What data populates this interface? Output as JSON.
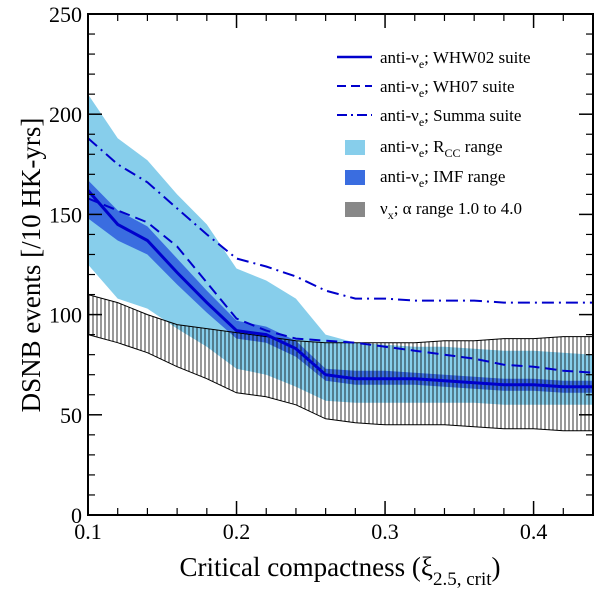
{
  "chart_data": {
    "type": "line",
    "xlabel": "Critical compactness (ξ",
    "xlabel_sub": "2.5, crit",
    "xlabel_close": ")",
    "ylabel": "DSNB events [/10 HK-yrs]",
    "xlim": [
      0.1,
      0.44
    ],
    "ylim": [
      0,
      250
    ],
    "xticks": [
      0.1,
      0.2,
      0.3,
      0.4
    ],
    "xtick_labels": [
      "0.1",
      "0.2",
      "0.3",
      "0.4"
    ],
    "yticks": [
      0,
      50,
      100,
      150,
      200,
      250
    ],
    "ytick_labels": [
      "0",
      "50",
      "100",
      "150",
      "200",
      "250"
    ],
    "x": [
      0.1,
      0.12,
      0.14,
      0.16,
      0.18,
      0.2,
      0.22,
      0.24,
      0.26,
      0.28,
      0.3,
      0.32,
      0.34,
      0.36,
      0.38,
      0.4,
      0.42,
      0.44
    ],
    "series": [
      {
        "name": "anti-νe; WHW02 suite",
        "style": "solid",
        "color": "#0000cc",
        "values": [
          162,
          145,
          137,
          121,
          106,
          92,
          90,
          83,
          70,
          68,
          68,
          68,
          67,
          66,
          65,
          65,
          64,
          64
        ]
      },
      {
        "name": "anti-νe; WH07 suite",
        "style": "dashed",
        "color": "#0000cc",
        "values": [
          158,
          152,
          146,
          134,
          116,
          98,
          92,
          88,
          87,
          86,
          84,
          82,
          80,
          78,
          75,
          74,
          72,
          71
        ]
      },
      {
        "name": "anti-νe; Summa suite",
        "style": "dashdot",
        "color": "#0000cc",
        "values": [
          188,
          175,
          166,
          153,
          140,
          128,
          124,
          119,
          112,
          108,
          108,
          107,
          107,
          107,
          106,
          106,
          106,
          106
        ]
      }
    ],
    "bands": [
      {
        "name": "anti-νe; RCC range",
        "color": "#87ceeb",
        "lower": [
          125,
          108,
          103,
          93,
          84,
          73,
          70,
          64,
          57,
          56,
          56,
          56,
          56,
          56,
          55,
          55,
          55,
          55
        ],
        "upper": [
          210,
          188,
          177,
          160,
          145,
          123,
          117,
          108,
          90,
          86,
          85,
          84,
          84,
          83,
          82,
          82,
          81,
          80
        ]
      },
      {
        "name": "anti-νe; IMF range",
        "color": "#3a6de0",
        "lower": [
          148,
          137,
          130,
          115,
          101,
          88,
          86,
          79,
          67,
          65,
          65,
          65,
          64,
          63,
          62,
          62,
          61,
          61
        ],
        "upper": [
          167,
          152,
          144,
          128,
          112,
          97,
          94,
          87,
          73,
          72,
          72,
          71,
          70,
          69,
          68,
          68,
          67,
          67
        ]
      },
      {
        "name": "νx; α range 1.0 to 4.0",
        "color": "#888888",
        "lower": [
          90,
          86,
          81,
          74,
          68,
          61,
          59,
          55,
          48,
          46,
          45,
          45,
          45,
          44,
          43,
          43,
          42,
          42
        ],
        "upper": [
          110,
          106,
          100,
          95,
          93,
          91,
          89,
          87,
          86,
          86,
          86,
          86,
          87,
          87,
          88,
          88,
          89,
          89
        ]
      }
    ],
    "legend": {
      "placement": "top-right",
      "entries": [
        {
          "type": "solid",
          "label": "anti-νe; WHW02 suite"
        },
        {
          "type": "dashed",
          "label": "anti-νe; WH07 suite"
        },
        {
          "type": "dashdot",
          "label": "anti-νe; Summa suite"
        },
        {
          "type": "swatch-light",
          "label": "anti-νe; RCC range"
        },
        {
          "type": "swatch-dark",
          "label": "anti-νe; IMF range"
        },
        {
          "type": "swatch-hatch",
          "label": "νx; α range 1.0 to 4.0"
        }
      ]
    }
  }
}
